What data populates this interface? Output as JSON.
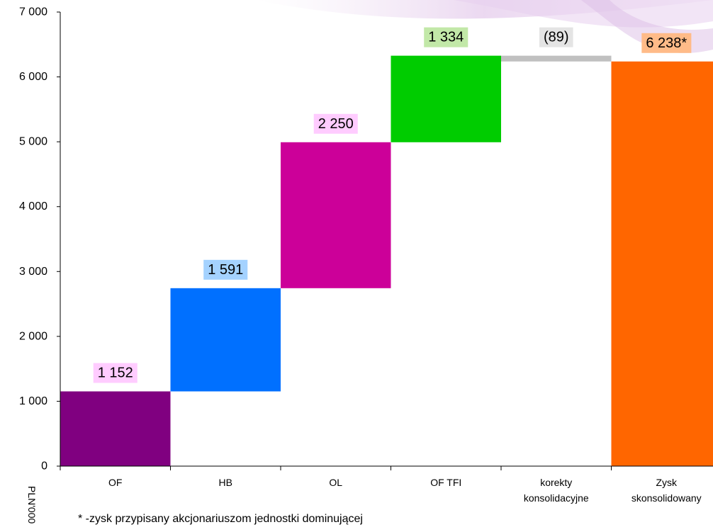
{
  "chart_data": {
    "type": "bar",
    "subtype": "waterfall",
    "ylabel": "PLN'000",
    "ylim": [
      0,
      7000
    ],
    "yticks": [
      "0",
      "1 000",
      "2 000",
      "3 000",
      "4 000",
      "5 000",
      "6 000",
      "7 000"
    ],
    "grid": false,
    "categories": [
      {
        "lines": [
          "OF"
        ]
      },
      {
        "lines": [
          "HB"
        ]
      },
      {
        "lines": [
          "OL"
        ]
      },
      {
        "lines": [
          "OF TFI"
        ]
      },
      {
        "lines": [
          "korekty",
          "konsolidacyjne"
        ]
      },
      {
        "lines": [
          "Zysk",
          "skonsolidowany"
        ]
      }
    ],
    "bars": [
      {
        "start": 0,
        "end": 1152,
        "value": 1152,
        "label": "1 152",
        "color": "#800080",
        "label_bg": "#ffccff"
      },
      {
        "start": 1152,
        "end": 2743,
        "value": 1591,
        "label": "1 591",
        "color": "#0070ff",
        "label_bg": "#a4d2ff"
      },
      {
        "start": 2743,
        "end": 4993,
        "value": 2250,
        "label": "2 250",
        "color": "#cc0099",
        "label_bg": "#ffccff"
      },
      {
        "start": 4993,
        "end": 6327,
        "value": 1334,
        "label": "1 334",
        "color": "#00cc00",
        "label_bg": "#c2e8a8"
      },
      {
        "start": 6238,
        "end": 6327,
        "value": -89,
        "label": "(89)",
        "color": "#c0c0c0",
        "label_bg": "#e4e4e4"
      },
      {
        "start": 0,
        "end": 6238,
        "value": 6238,
        "label": "6 238*",
        "color": "#ff6600",
        "label_bg": "#ffbb88"
      }
    ],
    "footnote": "* -zysk przypisany akcjonariuszom jednostki dominującej"
  }
}
